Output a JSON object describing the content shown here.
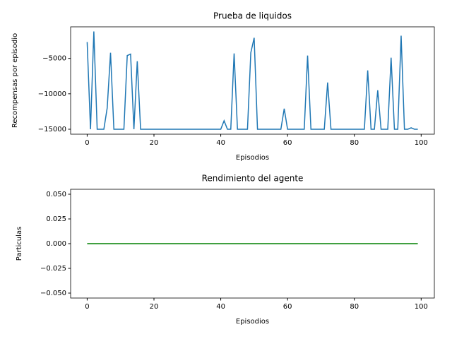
{
  "chart_data": [
    {
      "type": "line",
      "title": "Prueba de liquidos",
      "x_label": "Episodios",
      "y_label": "Recompensas por episodio",
      "x": [
        0,
        1,
        2,
        3,
        4,
        5,
        6,
        7,
        8,
        9,
        10,
        11,
        12,
        13,
        14,
        15,
        16,
        17,
        18,
        19,
        20,
        21,
        22,
        23,
        24,
        25,
        26,
        27,
        28,
        29,
        30,
        31,
        32,
        33,
        34,
        35,
        36,
        37,
        38,
        39,
        40,
        41,
        42,
        43,
        44,
        45,
        46,
        47,
        48,
        49,
        50,
        51,
        52,
        53,
        54,
        55,
        56,
        57,
        58,
        59,
        60,
        61,
        62,
        63,
        64,
        65,
        66,
        67,
        68,
        69,
        70,
        71,
        72,
        73,
        74,
        75,
        76,
        77,
        78,
        79,
        80,
        81,
        82,
        83,
        84,
        85,
        86,
        87,
        88,
        89,
        90,
        91,
        92,
        93,
        94,
        95,
        96,
        97,
        98,
        99
      ],
      "values": [
        -2700,
        -15000,
        -1200,
        -15000,
        -15000,
        -15000,
        -12000,
        -4200,
        -15000,
        -15000,
        -15000,
        -15000,
        -4600,
        -4400,
        -15000,
        -5400,
        -15000,
        -15000,
        -15000,
        -15000,
        -15000,
        -15000,
        -15000,
        -15000,
        -15000,
        -15000,
        -15000,
        -15000,
        -15000,
        -15000,
        -15000,
        -15000,
        -15000,
        -15000,
        -15000,
        -15000,
        -15000,
        -15000,
        -15000,
        -15000,
        -15000,
        -13800,
        -15000,
        -15000,
        -4300,
        -15000,
        -15000,
        -15000,
        -15000,
        -4200,
        -2100,
        -15000,
        -15000,
        -15000,
        -15000,
        -15000,
        -15000,
        -15000,
        -15000,
        -12100,
        -15000,
        -15000,
        -15000,
        -15000,
        -15000,
        -15000,
        -4600,
        -15000,
        -15000,
        -15000,
        -15000,
        -15000,
        -8400,
        -15000,
        -15000,
        -15000,
        -15000,
        -15000,
        -15000,
        -15000,
        -15000,
        -15000,
        -15000,
        -15000,
        -6700,
        -15000,
        -15000,
        -9500,
        -15000,
        -15000,
        -15000,
        -4900,
        -15000,
        -15000,
        -1800,
        -15000,
        -15000,
        -14800,
        -15000,
        -15000
      ],
      "color": "#1f77b4",
      "xlim": [
        -4.95,
        103.95
      ],
      "xticks": [
        0,
        20,
        40,
        60,
        80,
        100
      ],
      "ylim": [
        -15700,
        -550
      ],
      "yticks": [
        {
          "value": -5000,
          "label": "−5000"
        },
        {
          "value": -10000,
          "label": "−10000"
        },
        {
          "value": -15000,
          "label": "−15000"
        }
      ]
    },
    {
      "type": "line",
      "title": "Rendimiento del agente",
      "x_label": "Episodios",
      "y_label": "Particulas",
      "x": [
        0,
        1,
        2,
        3,
        4,
        5,
        6,
        7,
        8,
        9,
        10,
        11,
        12,
        13,
        14,
        15,
        16,
        17,
        18,
        19,
        20,
        21,
        22,
        23,
        24,
        25,
        26,
        27,
        28,
        29,
        30,
        31,
        32,
        33,
        34,
        35,
        36,
        37,
        38,
        39,
        40,
        41,
        42,
        43,
        44,
        45,
        46,
        47,
        48,
        49,
        50,
        51,
        52,
        53,
        54,
        55,
        56,
        57,
        58,
        59,
        60,
        61,
        62,
        63,
        64,
        65,
        66,
        67,
        68,
        69,
        70,
        71,
        72,
        73,
        74,
        75,
        76,
        77,
        78,
        79,
        80,
        81,
        82,
        83,
        84,
        85,
        86,
        87,
        88,
        89,
        90,
        91,
        92,
        93,
        94,
        95,
        96,
        97,
        98,
        99
      ],
      "values": [
        0,
        0,
        0,
        0,
        0,
        0,
        0,
        0,
        0,
        0,
        0,
        0,
        0,
        0,
        0,
        0,
        0,
        0,
        0,
        0,
        0,
        0,
        0,
        0,
        0,
        0,
        0,
        0,
        0,
        0,
        0,
        0,
        0,
        0,
        0,
        0,
        0,
        0,
        0,
        0,
        0,
        0,
        0,
        0,
        0,
        0,
        0,
        0,
        0,
        0,
        0,
        0,
        0,
        0,
        0,
        0,
        0,
        0,
        0,
        0,
        0,
        0,
        0,
        0,
        0,
        0,
        0,
        0,
        0,
        0,
        0,
        0,
        0,
        0,
        0,
        0,
        0,
        0,
        0,
        0,
        0,
        0,
        0,
        0,
        0,
        0,
        0,
        0,
        0,
        0,
        0,
        0,
        0,
        0,
        0,
        0,
        0,
        0,
        0,
        0
      ],
      "color": "#008000",
      "xlim": [
        -4.95,
        103.95
      ],
      "xticks": [
        0,
        20,
        40,
        60,
        80,
        100
      ],
      "ylim": [
        -0.055,
        0.055
      ],
      "yticks": [
        {
          "value": 0.05,
          "label": "0.050"
        },
        {
          "value": 0.025,
          "label": "0.025"
        },
        {
          "value": 0,
          "label": "0.000"
        },
        {
          "value": -0.025,
          "label": "−0.025"
        },
        {
          "value": -0.05,
          "label": "−0.050"
        }
      ]
    }
  ]
}
